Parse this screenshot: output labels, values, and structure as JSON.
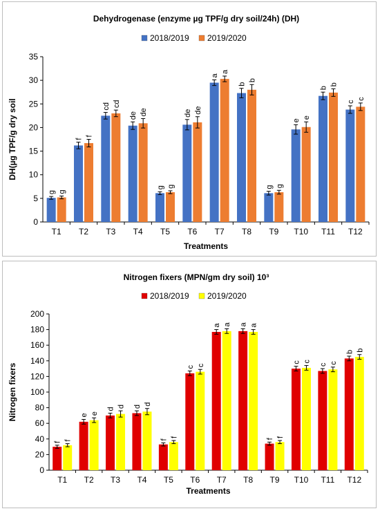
{
  "chart_data": [
    {
      "type": "bar",
      "title": "Dehydrogenase (enzyme µg TPF/g dry soil/24h) (DH)",
      "xlabel": "Treatments",
      "ylabel": "DH(µg TPF/g dry soil",
      "ylim": [
        0,
        35
      ],
      "yticks": [
        0,
        5,
        10,
        15,
        20,
        25,
        30,
        35
      ],
      "grid": false,
      "legend": "top-center",
      "categories": [
        "T1",
        "T2",
        "T3",
        "T4",
        "T5",
        "T6",
        "T7",
        "T8",
        "T9",
        "T10",
        "T11",
        "T12"
      ],
      "series": [
        {
          "name": "2018/2019",
          "color": "#4472c4",
          "values": [
            5.1,
            16.2,
            22.5,
            20.4,
            6.1,
            20.6,
            29.5,
            27.3,
            6.1,
            19.6,
            26.7,
            23.8
          ],
          "errors": [
            0.3,
            0.7,
            0.7,
            0.8,
            0.3,
            1.1,
            0.6,
            1.0,
            0.4,
            1.0,
            0.8,
            0.8
          ],
          "letters": [
            "g",
            "f",
            "cd",
            "de",
            "g",
            "de",
            "a",
            "b",
            "g",
            "e",
            "b",
            "c"
          ]
        },
        {
          "name": "2019/2020",
          "color": "#ed7d31",
          "values": [
            5.2,
            16.7,
            23.0,
            20.9,
            6.3,
            21.1,
            30.3,
            28.0,
            6.3,
            20.1,
            27.4,
            24.4
          ],
          "errors": [
            0.3,
            0.8,
            0.7,
            1.0,
            0.3,
            1.2,
            0.6,
            1.1,
            0.4,
            1.1,
            0.8,
            0.8
          ],
          "letters": [
            "g",
            "f",
            "cd",
            "de",
            "g",
            "de",
            "a",
            "b",
            "g",
            "e",
            "b",
            "c"
          ]
        }
      ]
    },
    {
      "type": "bar",
      "title": "Nitrogen fixers (MPN/gm dry soil) 10³",
      "xlabel": "Treatments",
      "ylabel": "Nitrogen fixers",
      "ylim": [
        0,
        200
      ],
      "yticks": [
        0,
        20,
        40,
        60,
        80,
        100,
        120,
        140,
        160,
        180,
        200
      ],
      "grid": false,
      "legend": "top-center",
      "categories": [
        "T1",
        "T2",
        "T3",
        "T4",
        "T5",
        "T6",
        "T7",
        "T8",
        "T9",
        "T10",
        "T11",
        "T12"
      ],
      "series": [
        {
          "name": "2018/2019",
          "color": "#e00000",
          "values": [
            30,
            62,
            70,
            73,
            33,
            124,
            177,
            178,
            34,
            130,
            127,
            143
          ],
          "errors": [
            2,
            3,
            3,
            3,
            2,
            3,
            3,
            3,
            2,
            3,
            3,
            3
          ],
          "letters": [
            "f",
            "e",
            "d",
            "d",
            "f",
            "c",
            "a",
            "a",
            "f",
            "c",
            "c",
            "b"
          ]
        },
        {
          "name": "2019/2020",
          "color": "#ffff00",
          "values": [
            32,
            64,
            72,
            75,
            36,
            126,
            178,
            177,
            36,
            131,
            129,
            145
          ],
          "errors": [
            2,
            3,
            4,
            4,
            2,
            3,
            3,
            3,
            2,
            3,
            3,
            3
          ],
          "letters": [
            "f",
            "e",
            "d",
            "d",
            "f",
            "c",
            "a",
            "a",
            "f",
            "c",
            "c",
            "b"
          ]
        }
      ]
    }
  ]
}
